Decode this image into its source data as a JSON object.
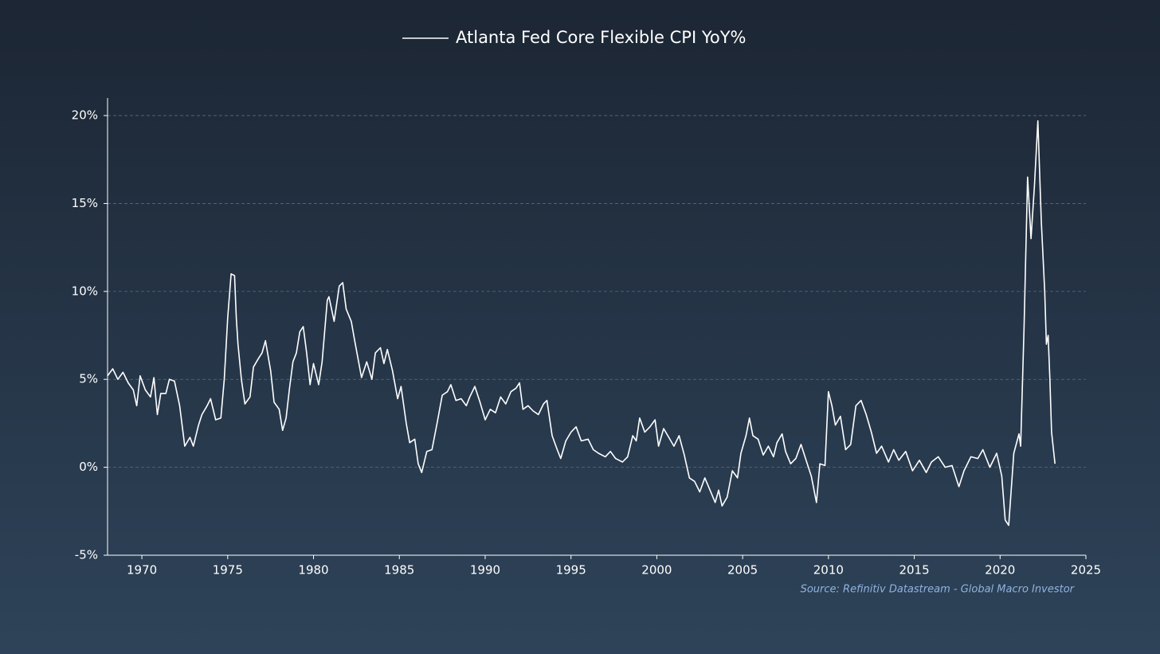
{
  "chart_data": {
    "type": "line",
    "series": [
      {
        "name": "Atlanta Fed Core Flexible CPI YoY%",
        "color": "#ffffff",
        "x": [
          1968.0,
          1968.3,
          1968.6,
          1968.9,
          1969.2,
          1969.5,
          1969.7,
          1969.9,
          1970.2,
          1970.5,
          1970.7,
          1970.9,
          1971.1,
          1971.4,
          1971.6,
          1971.9,
          1972.2,
          1972.5,
          1972.8,
          1973.0,
          1973.3,
          1973.5,
          1973.8,
          1974.0,
          1974.3,
          1974.6,
          1974.8,
          1975.0,
          1975.2,
          1975.4,
          1975.5,
          1975.6,
          1975.8,
          1976.0,
          1976.3,
          1976.5,
          1976.8,
          1977.0,
          1977.2,
          1977.5,
          1977.7,
          1978.0,
          1978.2,
          1978.4,
          1978.6,
          1978.8,
          1979.0,
          1979.2,
          1979.4,
          1979.6,
          1979.8,
          1980.0,
          1980.3,
          1980.5,
          1980.8,
          1980.9,
          1981.2,
          1981.5,
          1981.7,
          1981.9,
          1982.2,
          1982.4,
          1982.8,
          1983.1,
          1983.4,
          1983.6,
          1983.9,
          1984.1,
          1984.3,
          1984.6,
          1984.9,
          1985.1,
          1985.4,
          1985.6,
          1985.9,
          1986.1,
          1986.3,
          1986.6,
          1986.9,
          1987.2,
          1987.5,
          1987.8,
          1988.0,
          1988.3,
          1988.6,
          1988.9,
          1989.1,
          1989.4,
          1989.7,
          1990.0,
          1990.3,
          1990.6,
          1990.9,
          1991.2,
          1991.5,
          1991.8,
          1992.0,
          1992.2,
          1992.5,
          1992.8,
          1993.1,
          1993.4,
          1993.6,
          1993.9,
          1994.2,
          1994.4,
          1994.7,
          1995.0,
          1995.3,
          1995.6,
          1996.0,
          1996.3,
          1996.6,
          1997.0,
          1997.3,
          1997.6,
          1998.0,
          1998.3,
          1998.6,
          1998.8,
          1999.0,
          1999.3,
          1999.6,
          1999.9,
          2000.1,
          2000.4,
          2000.7,
          2001.0,
          2001.3,
          2001.6,
          2001.9,
          2002.2,
          2002.5,
          2002.8,
          2003.1,
          2003.4,
          2003.6,
          2003.8,
          2004.1,
          2004.4,
          2004.7,
          2004.9,
          2005.2,
          2005.4,
          2005.6,
          2005.9,
          2006.2,
          2006.5,
          2006.8,
          2007.0,
          2007.3,
          2007.5,
          2007.8,
          2008.1,
          2008.4,
          2008.7,
          2009.0,
          2009.3,
          2009.5,
          2009.8,
          2010.0,
          2010.2,
          2010.4,
          2010.7,
          2011.0,
          2011.3,
          2011.6,
          2011.9,
          2012.2,
          2012.5,
          2012.8,
          2013.1,
          2013.5,
          2013.8,
          2014.1,
          2014.5,
          2014.9,
          2015.3,
          2015.7,
          2016.0,
          2016.4,
          2016.8,
          2017.2,
          2017.6,
          2017.9,
          2018.3,
          2018.7,
          2019.0,
          2019.4,
          2019.8,
          2020.1,
          2020.3,
          2020.5,
          2020.8,
          2021.1,
          2021.2,
          2021.4,
          2021.6,
          2021.8,
          2022.0,
          2022.2,
          2022.4,
          2022.6,
          2022.7,
          2022.8,
          2022.9,
          2023.0,
          2023.2
        ],
        "values": [
          5.2,
          5.6,
          5.0,
          5.4,
          4.8,
          4.4,
          3.5,
          5.2,
          4.4,
          4.0,
          5.1,
          3.0,
          4.2,
          4.2,
          5.0,
          4.9,
          3.5,
          1.2,
          1.7,
          1.2,
          2.4,
          3.0,
          3.5,
          3.9,
          2.7,
          2.8,
          5.0,
          8.5,
          11.0,
          10.9,
          8.5,
          7.0,
          5.0,
          3.6,
          4.0,
          5.7,
          6.2,
          6.5,
          7.2,
          5.5,
          3.7,
          3.3,
          2.1,
          2.8,
          4.5,
          6.0,
          6.5,
          7.7,
          8.0,
          6.5,
          4.7,
          5.9,
          4.7,
          6.0,
          9.5,
          9.7,
          8.3,
          10.3,
          10.5,
          9.0,
          8.3,
          7.2,
          5.1,
          6.0,
          5.0,
          6.5,
          6.8,
          5.9,
          6.7,
          5.5,
          3.9,
          4.6,
          2.5,
          1.4,
          1.6,
          0.2,
          -0.3,
          0.9,
          1.0,
          2.5,
          4.1,
          4.3,
          4.7,
          3.8,
          3.9,
          3.5,
          4.0,
          4.6,
          3.7,
          2.7,
          3.3,
          3.1,
          4.0,
          3.6,
          4.3,
          4.5,
          4.8,
          3.3,
          3.5,
          3.2,
          3.0,
          3.6,
          3.8,
          1.8,
          1.0,
          0.5,
          1.5,
          2.0,
          2.3,
          1.5,
          1.6,
          1.0,
          0.8,
          0.6,
          0.9,
          0.5,
          0.3,
          0.6,
          1.8,
          1.5,
          2.8,
          2.0,
          2.3,
          2.7,
          1.2,
          2.2,
          1.7,
          1.2,
          1.8,
          0.7,
          -0.6,
          -0.8,
          -1.4,
          -0.6,
          -1.3,
          -2.0,
          -1.3,
          -2.2,
          -1.7,
          -0.2,
          -0.6,
          0.8,
          1.8,
          2.8,
          1.8,
          1.6,
          0.7,
          1.2,
          0.6,
          1.4,
          1.9,
          0.9,
          0.2,
          0.5,
          1.3,
          0.4,
          -0.5,
          -2.0,
          0.2,
          0.1,
          4.3,
          3.5,
          2.4,
          2.9,
          1.0,
          1.3,
          3.5,
          3.8,
          3.0,
          2.0,
          0.8,
          1.2,
          0.3,
          1.0,
          0.4,
          0.9,
          -0.2,
          0.4,
          -0.3,
          0.3,
          0.6,
          0.0,
          0.1,
          -1.1,
          -0.2,
          0.6,
          0.5,
          1.0,
          0.0,
          0.8,
          -0.5,
          -3.0,
          -3.3,
          0.8,
          1.9,
          1.2,
          8.0,
          16.5,
          13.0,
          16.0,
          19.7,
          14.0,
          10.0,
          7.0,
          7.5,
          5.0,
          2.0,
          0.2
        ]
      }
    ],
    "xlim": [
      1968,
      2025
    ],
    "xticks": [
      1970,
      1975,
      1980,
      1985,
      1990,
      1995,
      2000,
      2005,
      2010,
      2015,
      2020,
      2025
    ],
    "ylim": [
      -5,
      21
    ],
    "yticks": [
      {
        "value": -5,
        "label": "-5%"
      },
      {
        "value": 0,
        "label": "0%"
      },
      {
        "value": 5,
        "label": "5%"
      },
      {
        "value": 10,
        "label": "10%"
      },
      {
        "value": 15,
        "label": "15%"
      },
      {
        "value": 20,
        "label": "20%"
      }
    ],
    "grid": true,
    "source": "Source: Refinitiv Datastream - Global Macro Investor"
  }
}
